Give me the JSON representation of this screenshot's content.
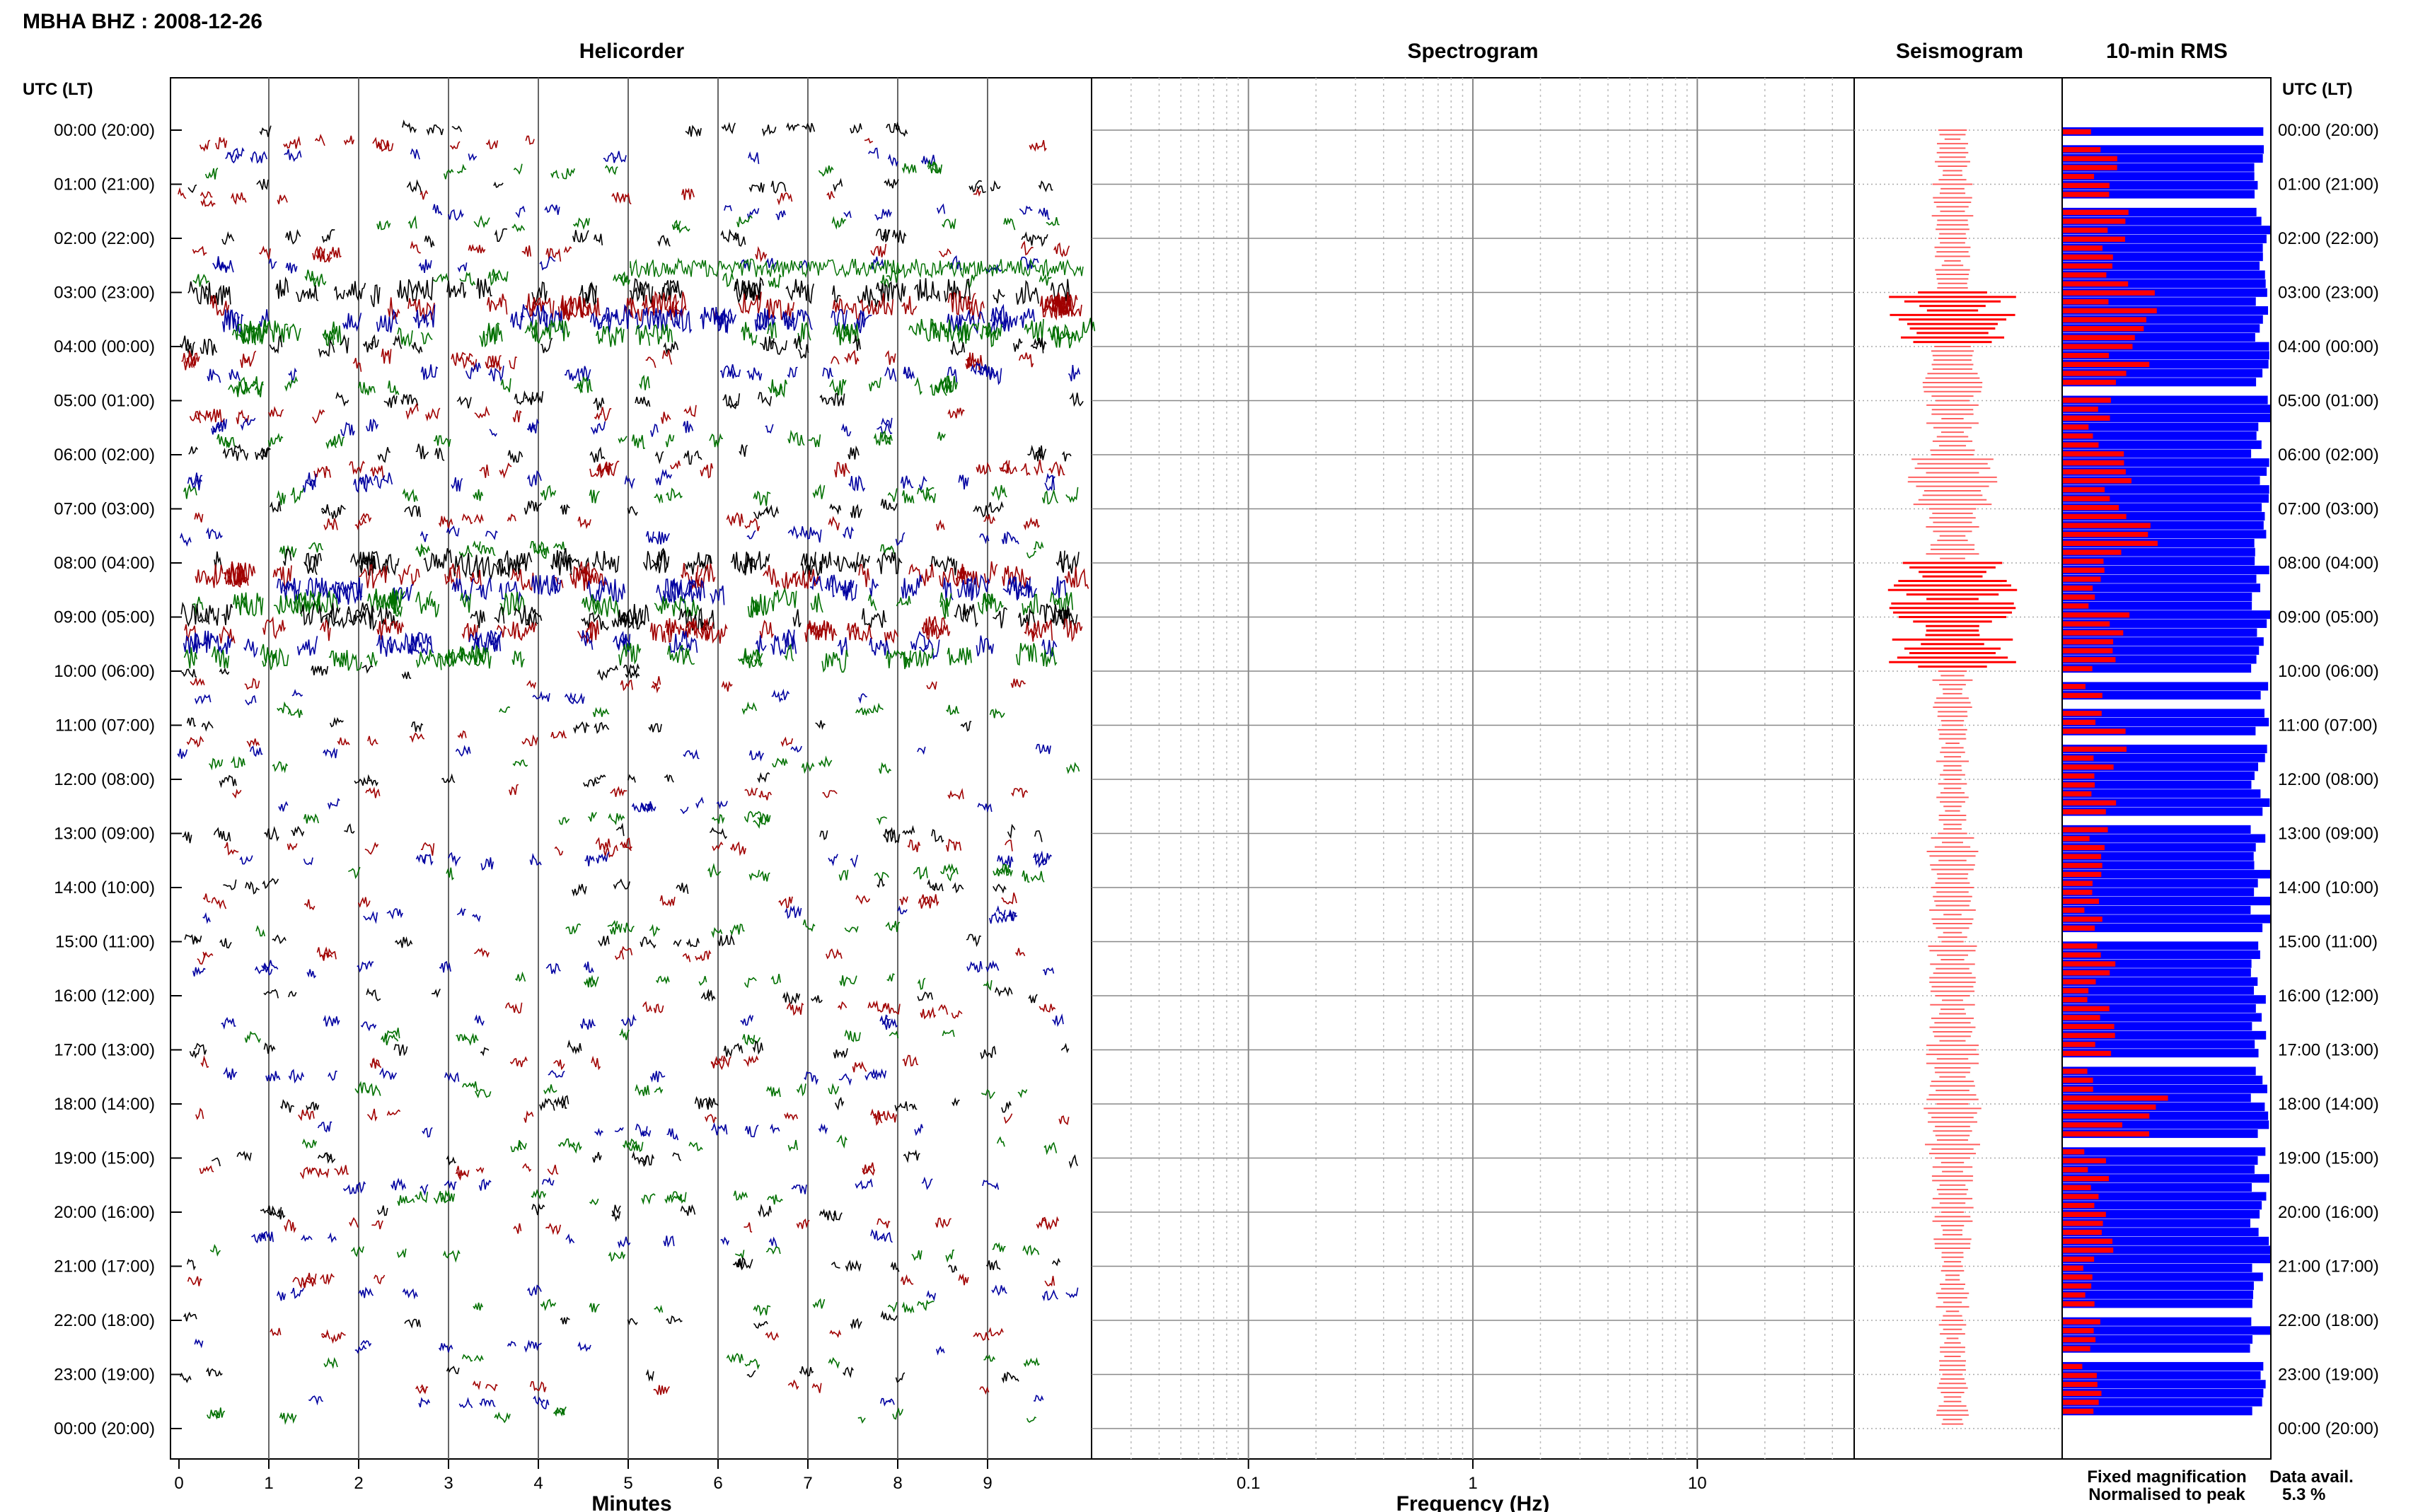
{
  "title": "MBHA BHZ : 2008-12-26",
  "panels": {
    "helicorder": "Helicorder",
    "spectrogram": "Spectrogram",
    "seismogram": "Seismogram",
    "rms": "10-min RMS"
  },
  "time_axis_label": "UTC (LT)",
  "hour_labels": [
    "00:00 (20:00)",
    "01:00 (21:00)",
    "02:00 (22:00)",
    "03:00 (23:00)",
    "04:00 (00:00)",
    "05:00 (01:00)",
    "06:00 (02:00)",
    "07:00 (03:00)",
    "08:00 (04:00)",
    "09:00 (05:00)",
    "10:00 (06:00)",
    "11:00 (07:00)",
    "12:00 (08:00)",
    "13:00 (09:00)",
    "14:00 (10:00)",
    "15:00 (11:00)",
    "16:00 (12:00)",
    "17:00 (13:00)",
    "18:00 (14:00)",
    "19:00 (15:00)",
    "20:00 (16:00)",
    "21:00 (17:00)",
    "22:00 (18:00)",
    "23:00 (19:00)",
    "00:00 (20:00)"
  ],
  "xlabels": {
    "helicorder": "Minutes",
    "spectrogram": "Frequency (Hz)"
  },
  "legend": {
    "fixed": "Fixed magnification",
    "fixed_color": "#0000ff",
    "normalised": "Normalised to peak",
    "normalised_color": "#ff0000"
  },
  "data_avail": {
    "label": "Data avail.",
    "value": "5.3 %"
  },
  "trace_colors": [
    "#000000",
    "#a00000",
    "#0000a0",
    "#007000"
  ],
  "chart_data": [
    {
      "type": "line",
      "name": "helicorder",
      "x_ticks": [
        "0",
        "1",
        "2",
        "3",
        "4",
        "5",
        "6",
        "7",
        "8",
        "9"
      ],
      "xlim": [
        0,
        10
      ],
      "ylim_hours": [
        0,
        24
      ],
      "activity": [
        0.3,
        0.3,
        0.4,
        1.0,
        0.6,
        0.4,
        0.5,
        0.4,
        1.0,
        0.9,
        0.2,
        0.2,
        0.2,
        0.35,
        0.25,
        0.25,
        0.25,
        0.3,
        0.3,
        0.25,
        0.25,
        0.2,
        0.15,
        0.2
      ]
    },
    {
      "type": "line",
      "name": "spectrogram",
      "scale": "log",
      "xlim": [
        0.02,
        50
      ],
      "x_ticks": [
        {
          "value": 0.1,
          "label": "0.1"
        },
        {
          "value": 1,
          "label": "1"
        },
        {
          "value": 10,
          "label": "10"
        }
      ]
    },
    {
      "type": "line",
      "name": "seismogram",
      "envelope": [
        0.2,
        0.25,
        0.2,
        0.9,
        0.35,
        0.3,
        0.6,
        0.3,
        0.9,
        0.9,
        0.2,
        0.15,
        0.15,
        0.3,
        0.25,
        0.3,
        0.3,
        0.3,
        0.35,
        0.25,
        0.2,
        0.15,
        0.1,
        0.15
      ]
    },
    {
      "type": "bar",
      "name": "10-min RMS",
      "rows": 144,
      "series": [
        {
          "name": "Fixed magnification",
          "color": "#0000ff"
        },
        {
          "name": "Normalised to peak",
          "color": "#ff0000"
        }
      ],
      "hourly_normalised": [
        0.45,
        0.55,
        0.6,
        0.7,
        0.7,
        0.4,
        0.55,
        0.75,
        0.4,
        0.55,
        0.3,
        0.5,
        0.45,
        0.4,
        0.35,
        0.45,
        0.4,
        0.4,
        0.9,
        0.35,
        0.4,
        0.3,
        0.3,
        0.3
      ],
      "gaps_hours": [
        0.1,
        1.3,
        4.9,
        10.1,
        10.6,
        11.4,
        12.9,
        15.0,
        17.3,
        18.9,
        22.0,
        22.9
      ]
    }
  ]
}
